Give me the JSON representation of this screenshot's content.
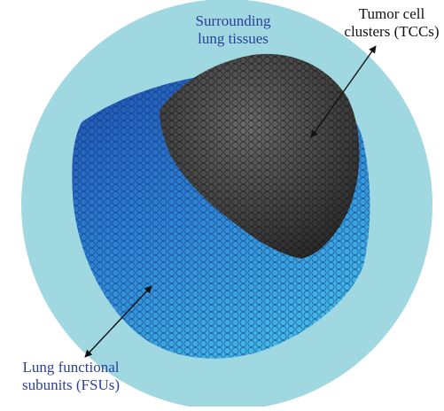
{
  "labels": {
    "surrounding": [
      "Surrounding",
      "lung tissues"
    ],
    "tcc": [
      "Tumor cell",
      "clusters (TCCs)"
    ],
    "fsu": [
      "Lung functional",
      "subunits (FSUs)"
    ]
  },
  "colors": {
    "background_disk": "#9fd8e0",
    "fsu_dark": "#1f4fae",
    "fsu_light": "#41b8e8",
    "tumor_dark": "#2a2a2a",
    "tumor_light": "#6a6a6a",
    "label_blue": "#2b3f9c",
    "label_black": "#111111"
  }
}
